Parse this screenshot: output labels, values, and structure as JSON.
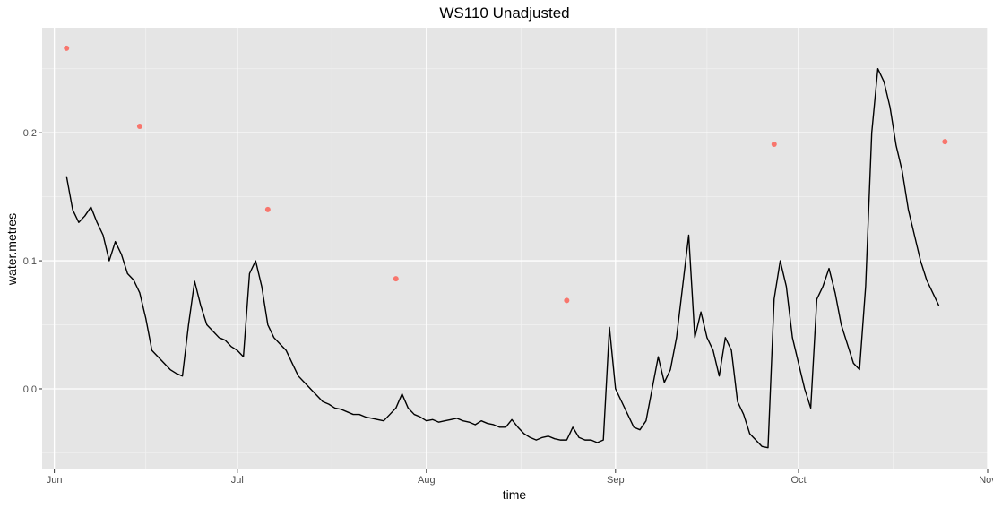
{
  "chart_data": {
    "type": "line",
    "title": "WS110 Unadjusted",
    "xlabel": "time",
    "ylabel": "water.metres",
    "x_axis": {
      "type": "date",
      "range": [
        "2019-05-30",
        "2019-11-01"
      ],
      "ticks": [
        {
          "date": "2019-06-01",
          "label": "Jun"
        },
        {
          "date": "2019-07-01",
          "label": "Jul"
        },
        {
          "date": "2019-08-01",
          "label": "Aug"
        },
        {
          "date": "2019-09-01",
          "label": "Sep"
        },
        {
          "date": "2019-10-01",
          "label": "Oct"
        },
        {
          "date": "2019-11-01",
          "label": "Nov"
        }
      ]
    },
    "y_axis": {
      "range": [
        -0.063,
        0.282
      ],
      "ticks": [
        {
          "value": 0.0,
          "label": "0.0"
        },
        {
          "value": 0.1,
          "label": "0.1"
        },
        {
          "value": 0.2,
          "label": "0.2"
        }
      ]
    },
    "grid": true,
    "panel_background": "#e5e5e5",
    "series": [
      {
        "kind": "line",
        "color": "#000000",
        "points": [
          [
            "2019-06-03",
            0.166
          ],
          [
            "2019-06-04",
            0.14
          ],
          [
            "2019-06-05",
            0.13
          ],
          [
            "2019-06-06",
            0.135
          ],
          [
            "2019-06-07",
            0.142
          ],
          [
            "2019-06-08",
            0.13
          ],
          [
            "2019-06-09",
            0.12
          ],
          [
            "2019-06-10",
            0.1
          ],
          [
            "2019-06-11",
            0.115
          ],
          [
            "2019-06-12",
            0.105
          ],
          [
            "2019-06-13",
            0.09
          ],
          [
            "2019-06-14",
            0.085
          ],
          [
            "2019-06-15",
            0.075
          ],
          [
            "2019-06-16",
            0.055
          ],
          [
            "2019-06-17",
            0.03
          ],
          [
            "2019-06-18",
            0.025
          ],
          [
            "2019-06-19",
            0.02
          ],
          [
            "2019-06-20",
            0.015
          ],
          [
            "2019-06-21",
            0.012
          ],
          [
            "2019-06-22",
            0.01
          ],
          [
            "2019-06-23",
            0.05
          ],
          [
            "2019-06-24",
            0.084
          ],
          [
            "2019-06-25",
            0.065
          ],
          [
            "2019-06-26",
            0.05
          ],
          [
            "2019-06-27",
            0.045
          ],
          [
            "2019-06-28",
            0.04
          ],
          [
            "2019-06-29",
            0.038
          ],
          [
            "2019-06-30",
            0.033
          ],
          [
            "2019-07-01",
            0.03
          ],
          [
            "2019-07-02",
            0.025
          ],
          [
            "2019-07-03",
            0.09
          ],
          [
            "2019-07-04",
            0.1
          ],
          [
            "2019-07-05",
            0.08
          ],
          [
            "2019-07-06",
            0.05
          ],
          [
            "2019-07-07",
            0.04
          ],
          [
            "2019-07-08",
            0.035
          ],
          [
            "2019-07-09",
            0.03
          ],
          [
            "2019-07-10",
            0.02
          ],
          [
            "2019-07-11",
            0.01
          ],
          [
            "2019-07-12",
            0.005
          ],
          [
            "2019-07-13",
            0.0
          ],
          [
            "2019-07-14",
            -0.005
          ],
          [
            "2019-07-15",
            -0.01
          ],
          [
            "2019-07-16",
            -0.012
          ],
          [
            "2019-07-17",
            -0.015
          ],
          [
            "2019-07-18",
            -0.016
          ],
          [
            "2019-07-19",
            -0.018
          ],
          [
            "2019-07-20",
            -0.02
          ],
          [
            "2019-07-21",
            -0.02
          ],
          [
            "2019-07-22",
            -0.022
          ],
          [
            "2019-07-23",
            -0.023
          ],
          [
            "2019-07-24",
            -0.024
          ],
          [
            "2019-07-25",
            -0.025
          ],
          [
            "2019-07-26",
            -0.02
          ],
          [
            "2019-07-27",
            -0.015
          ],
          [
            "2019-07-28",
            -0.004
          ],
          [
            "2019-07-29",
            -0.015
          ],
          [
            "2019-07-30",
            -0.02
          ],
          [
            "2019-07-31",
            -0.022
          ],
          [
            "2019-08-01",
            -0.025
          ],
          [
            "2019-08-02",
            -0.024
          ],
          [
            "2019-08-03",
            -0.026
          ],
          [
            "2019-08-04",
            -0.025
          ],
          [
            "2019-08-05",
            -0.024
          ],
          [
            "2019-08-06",
            -0.023
          ],
          [
            "2019-08-07",
            -0.025
          ],
          [
            "2019-08-08",
            -0.026
          ],
          [
            "2019-08-09",
            -0.028
          ],
          [
            "2019-08-10",
            -0.025
          ],
          [
            "2019-08-11",
            -0.027
          ],
          [
            "2019-08-12",
            -0.028
          ],
          [
            "2019-08-13",
            -0.03
          ],
          [
            "2019-08-14",
            -0.03
          ],
          [
            "2019-08-15",
            -0.024
          ],
          [
            "2019-08-16",
            -0.03
          ],
          [
            "2019-08-17",
            -0.035
          ],
          [
            "2019-08-18",
            -0.038
          ],
          [
            "2019-08-19",
            -0.04
          ],
          [
            "2019-08-20",
            -0.038
          ],
          [
            "2019-08-21",
            -0.037
          ],
          [
            "2019-08-22",
            -0.039
          ],
          [
            "2019-08-23",
            -0.04
          ],
          [
            "2019-08-24",
            -0.04
          ],
          [
            "2019-08-25",
            -0.03
          ],
          [
            "2019-08-26",
            -0.038
          ],
          [
            "2019-08-27",
            -0.04
          ],
          [
            "2019-08-28",
            -0.04
          ],
          [
            "2019-08-29",
            -0.042
          ],
          [
            "2019-08-30",
            -0.04
          ],
          [
            "2019-08-31",
            0.048
          ],
          [
            "2019-09-01",
            0.0
          ],
          [
            "2019-09-02",
            -0.01
          ],
          [
            "2019-09-03",
            -0.02
          ],
          [
            "2019-09-04",
            -0.03
          ],
          [
            "2019-09-05",
            -0.032
          ],
          [
            "2019-09-06",
            -0.025
          ],
          [
            "2019-09-07",
            0.0
          ],
          [
            "2019-09-08",
            0.025
          ],
          [
            "2019-09-09",
            0.005
          ],
          [
            "2019-09-10",
            0.015
          ],
          [
            "2019-09-11",
            0.04
          ],
          [
            "2019-09-12",
            0.08
          ],
          [
            "2019-09-13",
            0.12
          ],
          [
            "2019-09-14",
            0.04
          ],
          [
            "2019-09-15",
            0.06
          ],
          [
            "2019-09-16",
            0.04
          ],
          [
            "2019-09-17",
            0.03
          ],
          [
            "2019-09-18",
            0.01
          ],
          [
            "2019-09-19",
            0.04
          ],
          [
            "2019-09-20",
            0.03
          ],
          [
            "2019-09-21",
            -0.01
          ],
          [
            "2019-09-22",
            -0.02
          ],
          [
            "2019-09-23",
            -0.035
          ],
          [
            "2019-09-24",
            -0.04
          ],
          [
            "2019-09-25",
            -0.045
          ],
          [
            "2019-09-26",
            -0.046
          ],
          [
            "2019-09-27",
            0.07
          ],
          [
            "2019-09-28",
            0.1
          ],
          [
            "2019-09-29",
            0.08
          ],
          [
            "2019-09-30",
            0.04
          ],
          [
            "2019-10-01",
            0.02
          ],
          [
            "2019-10-02",
            0.0
          ],
          [
            "2019-10-03",
            -0.015
          ],
          [
            "2019-10-04",
            0.07
          ],
          [
            "2019-10-05",
            0.08
          ],
          [
            "2019-10-06",
            0.094
          ],
          [
            "2019-10-07",
            0.075
          ],
          [
            "2019-10-08",
            0.05
          ],
          [
            "2019-10-09",
            0.035
          ],
          [
            "2019-10-10",
            0.02
          ],
          [
            "2019-10-11",
            0.015
          ],
          [
            "2019-10-12",
            0.08
          ],
          [
            "2019-10-13",
            0.2
          ],
          [
            "2019-10-14",
            0.25
          ],
          [
            "2019-10-15",
            0.24
          ],
          [
            "2019-10-16",
            0.22
          ],
          [
            "2019-10-17",
            0.19
          ],
          [
            "2019-10-18",
            0.17
          ],
          [
            "2019-10-19",
            0.14
          ],
          [
            "2019-10-20",
            0.12
          ],
          [
            "2019-10-21",
            0.1
          ],
          [
            "2019-10-22",
            0.085
          ],
          [
            "2019-10-23",
            0.075
          ],
          [
            "2019-10-24",
            0.065
          ]
        ]
      },
      {
        "kind": "points",
        "color": "#f8766d",
        "points": [
          [
            "2019-06-03",
            0.266
          ],
          [
            "2019-06-15",
            0.205
          ],
          [
            "2019-07-06",
            0.14
          ],
          [
            "2019-07-27",
            0.086
          ],
          [
            "2019-08-24",
            0.069
          ],
          [
            "2019-09-27",
            0.191
          ],
          [
            "2019-10-25",
            0.193
          ]
        ]
      }
    ]
  }
}
